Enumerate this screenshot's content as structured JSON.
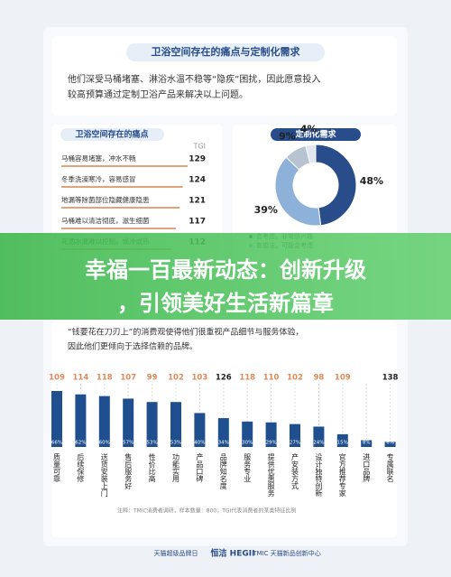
{
  "header": {
    "title": "卫浴空间存在的痛点与定制化需求",
    "lines": [
      "他们深受马桶堵塞、淋浴水温不稳等“隐疾”困扰，因此愿意投入",
      "较高预算通过定制卫浴产品来解决以上问题。"
    ]
  },
  "chart_data": [
    {
      "type": "hbar",
      "title": "卫浴空间存在的痛点",
      "value_header": "TGI",
      "categories": [
        "马桶容易堵塞，冲水不畅",
        "冬季洗澡寒冷，容易感冒",
        "地漏等除菌部位隐藏健康隐患",
        "马桶难以清洁彻底，滋生细菌",
        "花洒水温难以控制，或冷或热"
      ],
      "values": [
        129,
        124,
        121,
        117,
        112
      ],
      "color": "#e0a47c"
    },
    {
      "type": "pie",
      "title": "定制化需求",
      "categories": [
        "会考虑，非常感兴趣",
        "有想法，可能会考虑",
        null,
        null
      ],
      "values": [
        48,
        39,
        9,
        4
      ],
      "value_labels": [
        "48%",
        "39%",
        "9%",
        "4%"
      ],
      "colors": [
        "#284d8a",
        "#8db1d8",
        "#b7c3d1",
        "#dfe6ef"
      ]
    },
    {
      "type": "bar",
      "categories": [
        "质量可靠",
        "后续保修",
        "送货安装上门",
        "售后服务好",
        "性价比高",
        "功能实用",
        "产品口碑",
        "品牌知名度",
        "服务专业",
        "提供优惠服务",
        "产安装方式",
        "设计独特创新",
        "官方推荐专家",
        "进口品牌",
        "专属联名"
      ],
      "values": [
        66,
        62,
        60,
        57,
        53,
        53,
        40,
        34,
        30,
        29,
        27,
        24,
        15,
        8,
        6
      ],
      "value_labels": [
        "66%",
        "62%",
        "60%",
        "57%",
        "53%",
        "53%",
        "40%",
        "34%",
        "30%",
        "29%",
        "27%",
        "24%",
        "15%",
        "8%",
        "6%"
      ],
      "tgi": [
        109,
        114,
        118,
        107,
        99,
        102,
        103,
        126,
        118,
        110,
        102,
        98,
        109,
        null,
        138
      ],
      "color": "#1f4f8f"
    }
  ],
  "banner": [
    "幸福一百最新动态：创新升级",
    "，引领美好生活新篇章"
  ],
  "paragraph": [
    "“钱要花在刀刃上”的消费观使得他们很重视产品细节与服务体验，",
    "因此他们更倾向于选择信赖的品牌。"
  ],
  "note": "注释：TMIC消费者调研，样本数量：800；TGI代表消费者的某类特征比例",
  "logos": [
    "天猫超级品牌日",
    "恒洁 HEGII",
    "TMIC 天猫新品创新中心"
  ]
}
